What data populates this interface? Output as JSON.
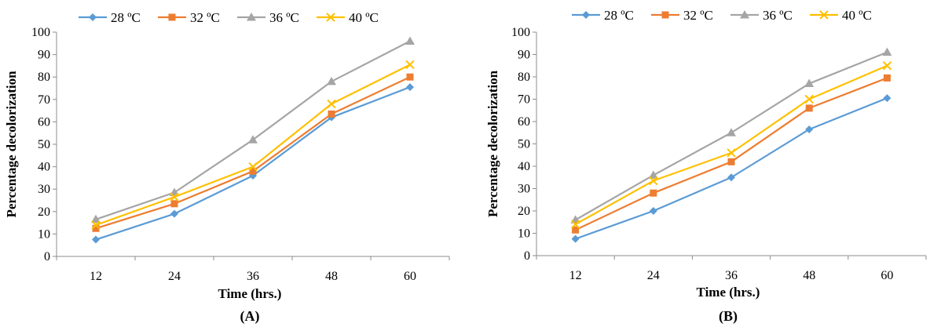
{
  "chart_data": [
    {
      "type": "line",
      "panel_label": "(A)",
      "x": [
        12,
        24,
        36,
        48,
        60
      ],
      "xlabel": "Time (hrs.)",
      "ylabel": "Percentage decolorization",
      "ylim": [
        0,
        100
      ],
      "yticks": [
        0,
        10,
        20,
        30,
        40,
        50,
        60,
        70,
        80,
        90,
        100
      ],
      "legend_position": "top",
      "series": [
        {
          "name": "28 ºC",
          "color": "#5B9BD5",
          "marker": "diamond",
          "values": [
            7.5,
            19,
            36,
            62,
            75.5
          ]
        },
        {
          "name": "32 ºC",
          "color": "#ED7D31",
          "marker": "square",
          "values": [
            12.5,
            23.5,
            38,
            63.5,
            80
          ]
        },
        {
          "name": "36 ºC",
          "color": "#A5A5A5",
          "marker": "triangle",
          "values": [
            16.5,
            28.5,
            52,
            78,
            96
          ]
        },
        {
          "name": "40 ºC",
          "color": "#FFC000",
          "marker": "x",
          "values": [
            14,
            26.5,
            40,
            68,
            85.5
          ]
        }
      ]
    },
    {
      "type": "line",
      "panel_label": "(B)",
      "x": [
        12,
        24,
        36,
        48,
        60
      ],
      "xlabel": "Time (hrs.)",
      "ylabel": "Percentage decolorization",
      "ylim": [
        0,
        100
      ],
      "yticks": [
        0,
        10,
        20,
        30,
        40,
        50,
        60,
        70,
        80,
        90,
        100
      ],
      "legend_position": "top",
      "series": [
        {
          "name": "28 ºC",
          "color": "#5B9BD5",
          "marker": "diamond",
          "values": [
            7.5,
            20,
            35,
            56.5,
            70.5
          ]
        },
        {
          "name": "32 ºC",
          "color": "#ED7D31",
          "marker": "square",
          "values": [
            11.5,
            28,
            42,
            66,
            79.5
          ]
        },
        {
          "name": "36 ºC",
          "color": "#A5A5A5",
          "marker": "triangle",
          "values": [
            16,
            36,
            55,
            77,
            91
          ]
        },
        {
          "name": "40 ºC",
          "color": "#FFC000",
          "marker": "x",
          "values": [
            14,
            33.5,
            46,
            70,
            85
          ]
        }
      ]
    }
  ]
}
